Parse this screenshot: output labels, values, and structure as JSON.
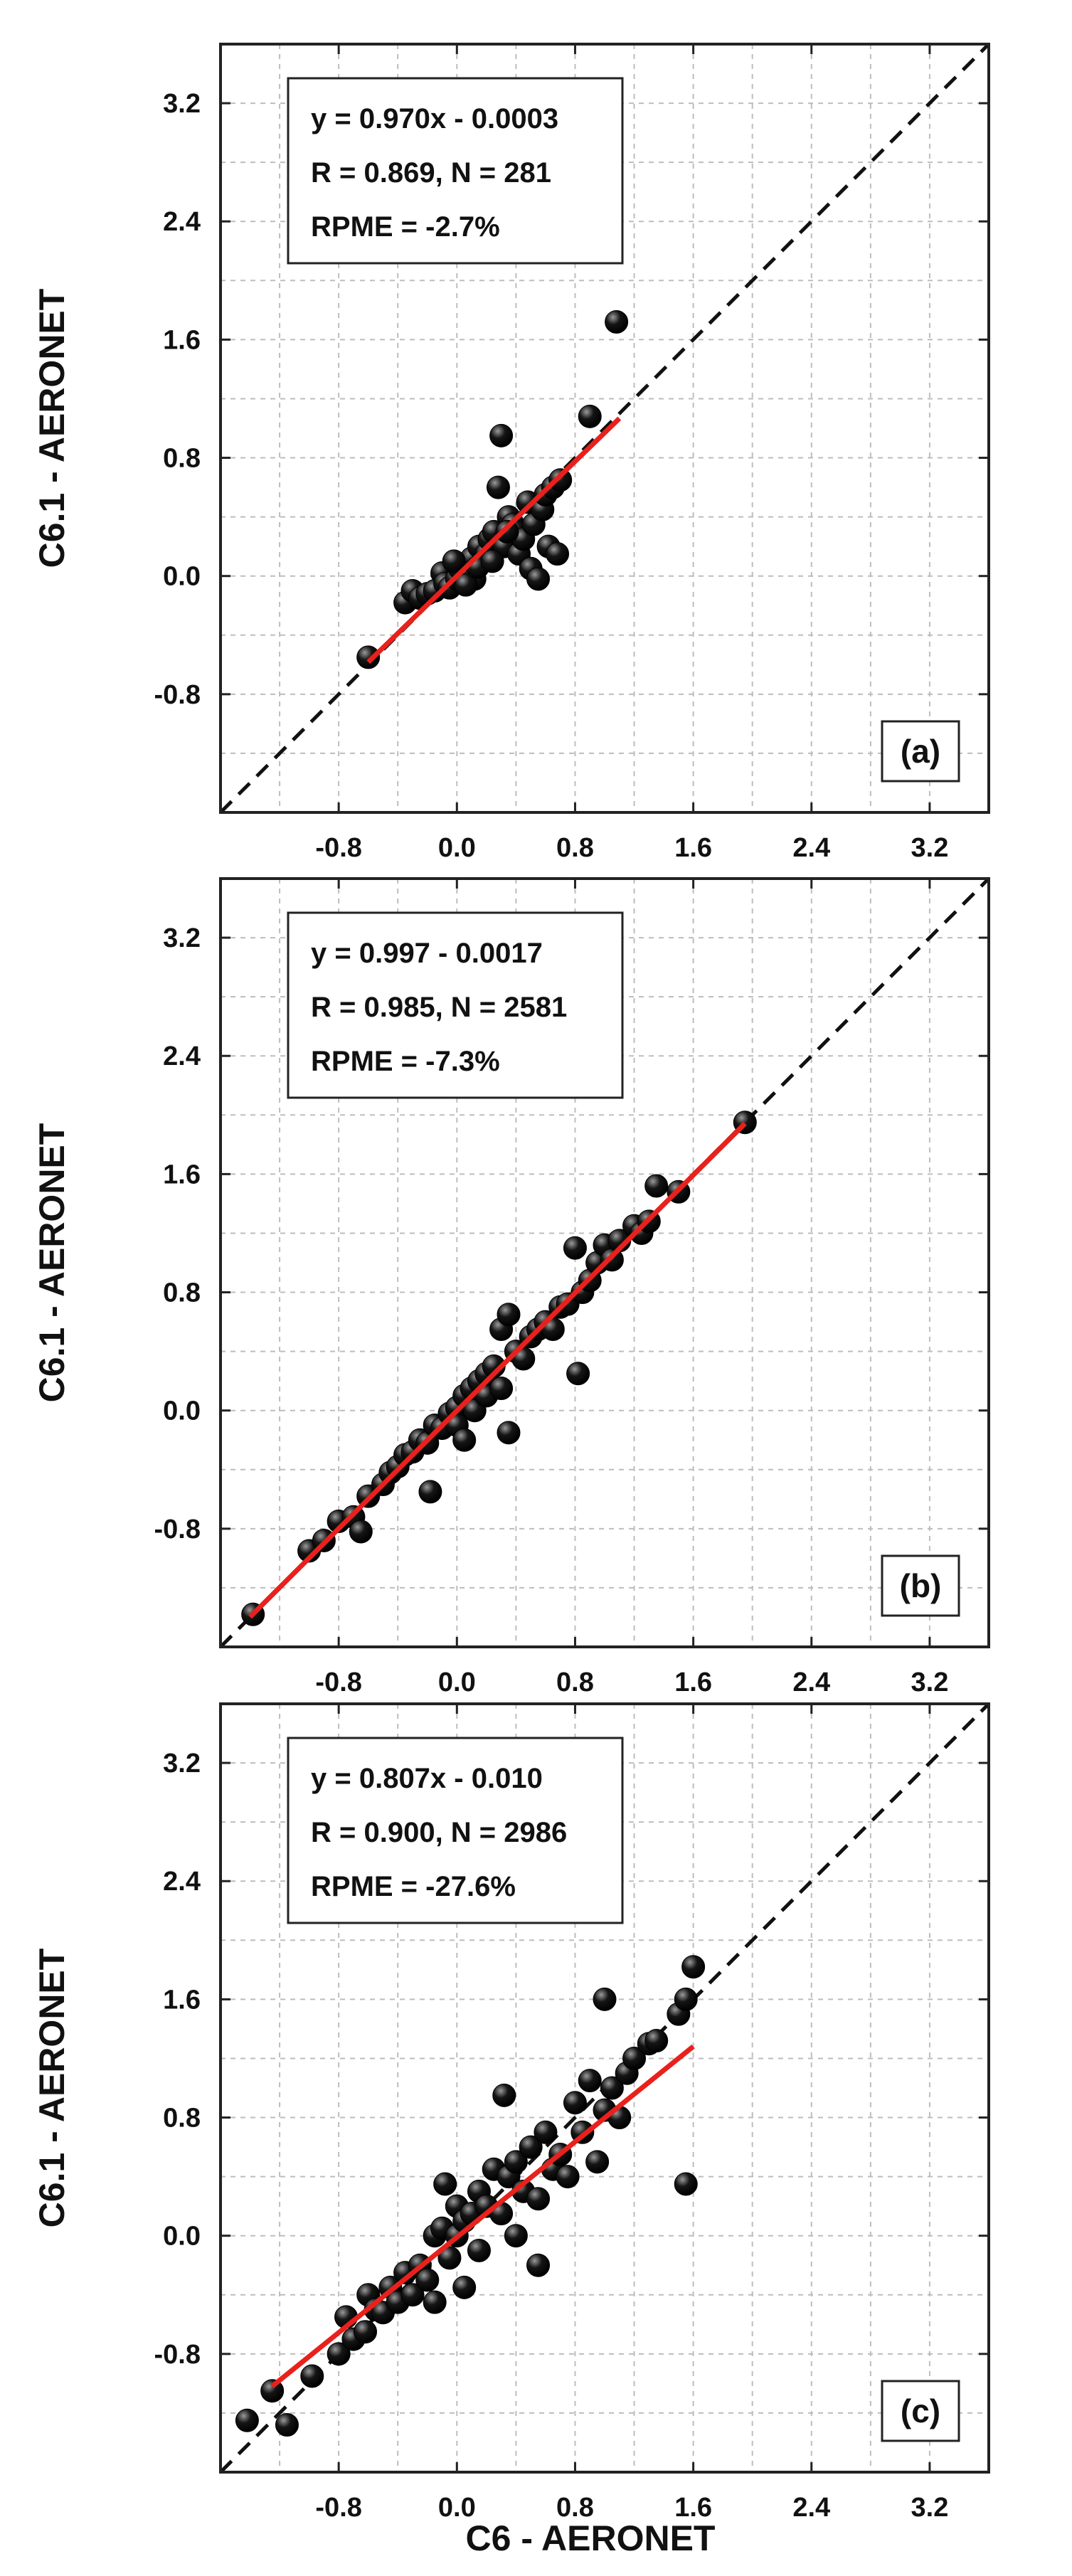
{
  "figure": {
    "x_axis_label": "C6 - AERONET"
  },
  "chart_data": [
    {
      "type": "scatter",
      "panel": "(a)",
      "ylabel": "C6.1 - AERONET",
      "xlim": [
        -1.6,
        3.6
      ],
      "ylim": [
        -1.6,
        3.6
      ],
      "xticks": [
        "-0.8",
        "0.0",
        "0.8",
        "1.6",
        "2.4",
        "3.2"
      ],
      "yticks": [
        "-0.8",
        "0.0",
        "0.8",
        "1.6",
        "2.4",
        "3.2"
      ],
      "grid": true,
      "one_to_one_line": true,
      "stats": [
        "y = 0.970x - 0.0003",
        "R = 0.869, N = 281",
        "RPME = -2.7%"
      ],
      "fit": {
        "slope": 0.97,
        "intercept": -0.0003,
        "x_range": [
          -0.6,
          1.1
        ]
      },
      "colors": {
        "points": "#151515",
        "fit_line": "#e8211c",
        "identity_line": "#111111"
      },
      "points": [
        [
          -0.6,
          -0.55
        ],
        [
          -0.35,
          -0.18
        ],
        [
          -0.3,
          -0.1
        ],
        [
          -0.25,
          -0.15
        ],
        [
          -0.2,
          -0.12
        ],
        [
          -0.15,
          -0.1
        ],
        [
          -0.1,
          0.02
        ],
        [
          -0.08,
          -0.05
        ],
        [
          -0.05,
          -0.08
        ],
        [
          0.0,
          -0.02
        ],
        [
          0.02,
          0.05
        ],
        [
          0.05,
          0.08
        ],
        [
          0.08,
          0.0
        ],
        [
          0.1,
          0.12
        ],
        [
          0.12,
          -0.02
        ],
        [
          0.15,
          0.2
        ],
        [
          0.18,
          0.1
        ],
        [
          0.2,
          0.15
        ],
        [
          0.22,
          0.25
        ],
        [
          0.25,
          0.3
        ],
        [
          0.28,
          0.6
        ],
        [
          0.3,
          0.95
        ],
        [
          0.32,
          0.2
        ],
        [
          0.35,
          0.4
        ],
        [
          0.38,
          0.35
        ],
        [
          0.4,
          0.3
        ],
        [
          0.42,
          0.15
        ],
        [
          0.45,
          0.25
        ],
        [
          0.48,
          0.5
        ],
        [
          0.5,
          0.05
        ],
        [
          0.52,
          0.35
        ],
        [
          0.55,
          -0.02
        ],
        [
          0.58,
          0.45
        ],
        [
          0.6,
          0.55
        ],
        [
          0.62,
          0.2
        ],
        [
          0.65,
          0.6
        ],
        [
          0.68,
          0.15
        ],
        [
          0.7,
          0.65
        ],
        [
          0.9,
          1.08
        ],
        [
          1.08,
          1.72
        ],
        [
          -0.02,
          0.1
        ],
        [
          0.06,
          -0.06
        ],
        [
          0.14,
          0.06
        ],
        [
          0.24,
          0.1
        ],
        [
          0.34,
          0.3
        ]
      ]
    },
    {
      "type": "scatter",
      "panel": "(b)",
      "ylabel": "C6.1 - AERONET",
      "xlim": [
        -1.6,
        3.6
      ],
      "ylim": [
        -1.6,
        3.6
      ],
      "xticks": [
        "-0.8",
        "0.0",
        "0.8",
        "1.6",
        "2.4",
        "3.2"
      ],
      "yticks": [
        "-0.8",
        "0.0",
        "0.8",
        "1.6",
        "2.4",
        "3.2"
      ],
      "grid": true,
      "one_to_one_line": true,
      "stats": [
        "y = 0.997 - 0.0017",
        "R = 0.985, N = 2581",
        "RPME = -7.3%"
      ],
      "fit": {
        "slope": 0.997,
        "intercept": -0.0017,
        "x_range": [
          -1.4,
          1.95
        ]
      },
      "colors": {
        "points": "#151515",
        "fit_line": "#e8211c",
        "identity_line": "#111111"
      },
      "points": [
        [
          -1.38,
          -1.38
        ],
        [
          -1.0,
          -0.95
        ],
        [
          -0.9,
          -0.88
        ],
        [
          -0.8,
          -0.75
        ],
        [
          -0.7,
          -0.72
        ],
        [
          -0.65,
          -0.82
        ],
        [
          -0.6,
          -0.58
        ],
        [
          -0.5,
          -0.5
        ],
        [
          -0.45,
          -0.42
        ],
        [
          -0.4,
          -0.38
        ],
        [
          -0.35,
          -0.3
        ],
        [
          -0.3,
          -0.28
        ],
        [
          -0.25,
          -0.2
        ],
        [
          -0.2,
          -0.22
        ],
        [
          -0.18,
          -0.55
        ],
        [
          -0.15,
          -0.1
        ],
        [
          -0.1,
          -0.12
        ],
        [
          -0.05,
          -0.02
        ],
        [
          0.0,
          0.02
        ],
        [
          0.0,
          -0.1
        ],
        [
          0.05,
          0.1
        ],
        [
          0.05,
          -0.2
        ],
        [
          0.1,
          0.15
        ],
        [
          0.12,
          0.0
        ],
        [
          0.15,
          0.2
        ],
        [
          0.2,
          0.1
        ],
        [
          0.2,
          0.25
        ],
        [
          0.25,
          0.3
        ],
        [
          0.3,
          0.55
        ],
        [
          0.3,
          0.15
        ],
        [
          0.35,
          0.65
        ],
        [
          0.35,
          -0.15
        ],
        [
          0.4,
          0.4
        ],
        [
          0.45,
          0.35
        ],
        [
          0.5,
          0.5
        ],
        [
          0.55,
          0.55
        ],
        [
          0.6,
          0.6
        ],
        [
          0.65,
          0.55
        ],
        [
          0.7,
          0.7
        ],
        [
          0.75,
          0.72
        ],
        [
          0.8,
          1.1
        ],
        [
          0.82,
          0.25
        ],
        [
          0.85,
          0.8
        ],
        [
          0.9,
          0.88
        ],
        [
          0.95,
          1.0
        ],
        [
          1.0,
          1.12
        ],
        [
          1.05,
          1.02
        ],
        [
          1.1,
          1.15
        ],
        [
          1.2,
          1.25
        ],
        [
          1.25,
          1.2
        ],
        [
          1.3,
          1.28
        ],
        [
          1.35,
          1.52
        ],
        [
          1.5,
          1.48
        ],
        [
          1.95,
          1.95
        ]
      ]
    },
    {
      "type": "scatter",
      "panel": "(c)",
      "ylabel": "C6.1 - AERONET",
      "xlim": [
        -1.6,
        3.6
      ],
      "ylim": [
        -1.6,
        3.6
      ],
      "xticks": [
        "-0.8",
        "0.0",
        "0.8",
        "1.6",
        "2.4",
        "3.2"
      ],
      "yticks": [
        "-0.8",
        "0.0",
        "0.8",
        "1.6",
        "2.4",
        "3.2"
      ],
      "grid": true,
      "one_to_one_line": true,
      "stats": [
        "y = 0.807x - 0.010",
        "R = 0.900, N = 2986",
        "RPME = -27.6%"
      ],
      "fit": {
        "slope": 0.807,
        "intercept": -0.01,
        "x_range": [
          -1.25,
          1.6
        ]
      },
      "colors": {
        "points": "#151515",
        "fit_line": "#e8211c",
        "identity_line": "#111111"
      },
      "points": [
        [
          -1.42,
          -1.25
        ],
        [
          -1.25,
          -1.05
        ],
        [
          -1.15,
          -1.28
        ],
        [
          -0.98,
          -0.95
        ],
        [
          -0.8,
          -0.8
        ],
        [
          -0.75,
          -0.55
        ],
        [
          -0.7,
          -0.7
        ],
        [
          -0.62,
          -0.65
        ],
        [
          -0.6,
          -0.4
        ],
        [
          -0.55,
          -0.5
        ],
        [
          -0.5,
          -0.52
        ],
        [
          -0.45,
          -0.35
        ],
        [
          -0.4,
          -0.45
        ],
        [
          -0.35,
          -0.25
        ],
        [
          -0.3,
          -0.4
        ],
        [
          -0.25,
          -0.2
        ],
        [
          -0.2,
          -0.3
        ],
        [
          -0.15,
          0.0
        ],
        [
          -0.15,
          -0.45
        ],
        [
          -0.1,
          0.05
        ],
        [
          -0.08,
          0.35
        ],
        [
          -0.05,
          -0.15
        ],
        [
          0.0,
          0.0
        ],
        [
          0.0,
          0.2
        ],
        [
          0.05,
          0.1
        ],
        [
          0.05,
          -0.35
        ],
        [
          0.1,
          0.15
        ],
        [
          0.15,
          0.3
        ],
        [
          0.15,
          -0.1
        ],
        [
          0.2,
          0.2
        ],
        [
          0.25,
          0.45
        ],
        [
          0.3,
          0.15
        ],
        [
          0.32,
          0.95
        ],
        [
          0.35,
          0.4
        ],
        [
          0.4,
          0.5
        ],
        [
          0.4,
          0.0
        ],
        [
          0.45,
          0.3
        ],
        [
          0.5,
          0.6
        ],
        [
          0.55,
          0.25
        ],
        [
          0.55,
          -0.2
        ],
        [
          0.6,
          0.7
        ],
        [
          0.65,
          0.45
        ],
        [
          0.7,
          0.55
        ],
        [
          0.75,
          0.4
        ],
        [
          0.8,
          0.9
        ],
        [
          0.85,
          0.7
        ],
        [
          0.9,
          1.05
        ],
        [
          0.95,
          0.5
        ],
        [
          1.0,
          0.85
        ],
        [
          1.0,
          1.6
        ],
        [
          1.05,
          1.0
        ],
        [
          1.1,
          0.8
        ],
        [
          1.15,
          1.1
        ],
        [
          1.2,
          1.2
        ],
        [
          1.3,
          1.3
        ],
        [
          1.35,
          1.32
        ],
        [
          1.5,
          1.5
        ],
        [
          1.55,
          0.35
        ],
        [
          1.55,
          1.6
        ],
        [
          1.6,
          1.82
        ]
      ]
    }
  ]
}
